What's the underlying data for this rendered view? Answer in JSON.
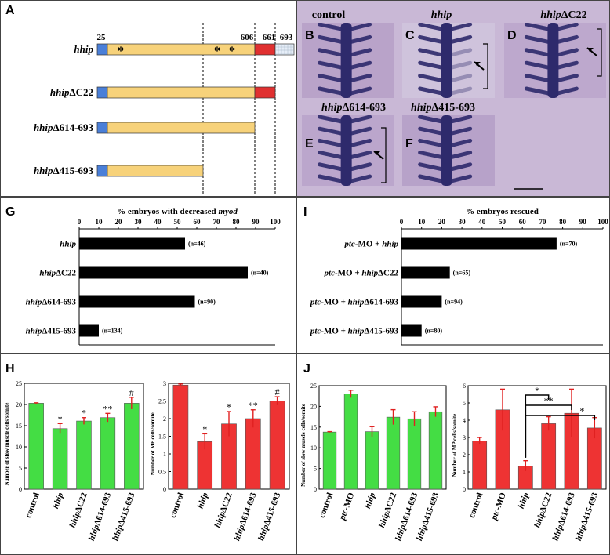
{
  "panels": {
    "a": {
      "label": "A"
    },
    "b": {
      "label": "B"
    },
    "c": {
      "label": "C"
    },
    "d": {
      "label": "D"
    },
    "e": {
      "label": "E"
    },
    "f": {
      "label": "F"
    },
    "g": {
      "label": "G"
    },
    "h": {
      "label": "H"
    },
    "i": {
      "label": "I"
    },
    "j": {
      "label": "J"
    }
  },
  "panel_a": {
    "constructs": [
      {
        "name": "hhip",
        "suffix": "",
        "segments": [
          "blue",
          "yellow",
          "red",
          "grid"
        ],
        "end": 693
      },
      {
        "name": "hhip",
        "suffix": "ΔC22",
        "segments": [
          "blue",
          "yellow",
          "red"
        ],
        "end": 661
      },
      {
        "name": "hhip",
        "suffix": "Δ614-693",
        "segments": [
          "blue",
          "yellow"
        ],
        "end": 606
      },
      {
        "name": "hhip",
        "suffix": "Δ415-693",
        "segments": [
          "blue",
          "yellow"
        ],
        "end": 415
      }
    ],
    "positions": [
      "25",
      "606",
      "661",
      "693"
    ],
    "asterisk": "*",
    "colors": {
      "blue": "#4a7fd8",
      "yellow": "#f7d27a",
      "red": "#e03030",
      "grid": "#e6eef8"
    }
  },
  "micro": [
    {
      "label": "control",
      "name": "",
      "suffix": ""
    },
    {
      "label": "",
      "name": "hhip",
      "suffix": ""
    },
    {
      "label": "",
      "name": "hhip",
      "suffix": "ΔC22"
    },
    {
      "label": "",
      "name": "hhip",
      "suffix": "Δ614-693"
    },
    {
      "label": "",
      "name": "hhip",
      "suffix": "Δ415-693"
    }
  ],
  "chart_data": [
    {
      "id": "G",
      "type": "bar",
      "orientation": "horizontal",
      "title": "% embryos with decreased myod",
      "title_prefix": "% embryos with decreased ",
      "title_italic": "myod",
      "ticks": [
        "0",
        "10",
        "20",
        "30",
        "40",
        "50",
        "60",
        "70",
        "80",
        "90",
        "100"
      ],
      "xlim": [
        0,
        100
      ],
      "categories": [
        {
          "prefix": "",
          "name": "hhip",
          "suffix": ""
        },
        {
          "prefix": "",
          "name": "hhip",
          "suffix": "ΔC22"
        },
        {
          "prefix": "",
          "name": "hhip",
          "suffix": "Δ614-693"
        },
        {
          "prefix": "",
          "name": "hhip",
          "suffix": "Δ415-693"
        }
      ],
      "values": [
        54,
        86,
        59,
        10
      ],
      "data_labels": [
        "(n=46)",
        "(n=40)",
        "(n=90)",
        "(n=134)"
      ]
    },
    {
      "id": "I",
      "type": "bar",
      "orientation": "horizontal",
      "title": "% embryos rescued",
      "ticks": [
        "0",
        "10",
        "20",
        "30",
        "40",
        "50",
        "60",
        "70",
        "80",
        "90",
        "100"
      ],
      "xlim": [
        0,
        100
      ],
      "categories": [
        {
          "prefix": "ptc-MO + ",
          "name": "hhip",
          "suffix": ""
        },
        {
          "prefix": "ptc-MO + ",
          "name": "hhip",
          "suffix": "ΔC22"
        },
        {
          "prefix": "ptc-MO + ",
          "name": "hhip",
          "suffix": "Δ614-693"
        },
        {
          "prefix": "ptc-MO + ",
          "name": "hhip",
          "suffix": "Δ415-693"
        }
      ],
      "values": [
        77,
        24,
        20,
        10
      ],
      "data_labels": [
        "(n=70)",
        "(n=65)",
        "(n=94)",
        "(n=80)"
      ]
    },
    {
      "id": "H1",
      "type": "bar",
      "ylabel": "Number of slow muscle cells/somite",
      "ylim": [
        0,
        25
      ],
      "yticks": [
        "0",
        "5",
        "10",
        "15",
        "20",
        "25"
      ],
      "color": "#44dd44",
      "categories": [
        {
          "prefix": "control",
          "name": "",
          "suffix": ""
        },
        {
          "prefix": "",
          "name": "hhip",
          "suffix": ""
        },
        {
          "prefix": "",
          "name": "hhip",
          "suffix": "ΔC22"
        },
        {
          "prefix": "",
          "name": "hhip",
          "suffix": "Δ614-693"
        },
        {
          "prefix": "",
          "name": "hhip",
          "suffix": "Δ415-693"
        }
      ],
      "values": [
        20.3,
        14.3,
        16.1,
        16.9,
        20.3
      ],
      "errors": [
        0.1,
        1.2,
        0.8,
        1.0,
        1.4
      ],
      "marks": [
        "",
        "*",
        "*",
        "**",
        "#"
      ]
    },
    {
      "id": "H2",
      "type": "bar",
      "ylabel": "Number of MP cells/somite",
      "ylim": [
        0,
        3
      ],
      "yticks": [
        "0",
        "0.5",
        "1",
        "1.5",
        "2",
        "2.5",
        "3"
      ],
      "color": "#ee3333",
      "categories": [
        {
          "prefix": "control",
          "name": "",
          "suffix": ""
        },
        {
          "prefix": "",
          "name": "hhip",
          "suffix": ""
        },
        {
          "prefix": "",
          "name": "hhip",
          "suffix": "ΔC22"
        },
        {
          "prefix": "",
          "name": "hhip",
          "suffix": "Δ614-693"
        },
        {
          "prefix": "",
          "name": "hhip",
          "suffix": "Δ415-693"
        }
      ],
      "values": [
        2.95,
        1.35,
        1.85,
        2.0,
        2.5
      ],
      "errors": [
        0.03,
        0.22,
        0.35,
        0.25,
        0.12
      ],
      "marks": [
        "",
        "*",
        "*",
        "**",
        "#"
      ]
    },
    {
      "id": "J1",
      "type": "bar",
      "ylabel": "Number of slow muscle cells/somite",
      "ylim": [
        0,
        25
      ],
      "yticks": [
        "0",
        "5",
        "10",
        "15",
        "20",
        "25"
      ],
      "color": "#44dd44",
      "categories": [
        {
          "prefix": "control",
          "name": "",
          "suffix": ""
        },
        {
          "prefix": "",
          "name": "ptc",
          "suffix": "-MO"
        },
        {
          "prefix": "",
          "name": "hhip",
          "suffix": ""
        },
        {
          "prefix": "",
          "name": "hhip",
          "suffix": "ΔC22"
        },
        {
          "prefix": "",
          "name": "hhip",
          "suffix": "Δ614-693"
        },
        {
          "prefix": "",
          "name": "hhip",
          "suffix": "Δ415-693"
        }
      ],
      "values": [
        13.8,
        23.0,
        13.9,
        17.4,
        17.0,
        18.7
      ],
      "errors": [
        0.1,
        0.9,
        1.2,
        1.8,
        1.7,
        1.2
      ],
      "marks": [
        "",
        "",
        "",
        "",
        "",
        ""
      ]
    },
    {
      "id": "J2",
      "type": "bar",
      "ylabel": "Number of MP cells/somite",
      "ylim": [
        0,
        6
      ],
      "yticks": [
        "0",
        "1",
        "2",
        "3",
        "4",
        "5",
        "6"
      ],
      "color": "#ee3333",
      "categories": [
        {
          "prefix": "control",
          "name": "",
          "suffix": ""
        },
        {
          "prefix": "",
          "name": "ptc",
          "suffix": "-MO"
        },
        {
          "prefix": "",
          "name": "hhip",
          "suffix": ""
        },
        {
          "prefix": "",
          "name": "hhip",
          "suffix": "ΔC22"
        },
        {
          "prefix": "",
          "name": "hhip",
          "suffix": "Δ614-693"
        },
        {
          "prefix": "",
          "name": "hhip",
          "suffix": "Δ415-693"
        }
      ],
      "values": [
        2.8,
        4.6,
        1.35,
        3.8,
        4.4,
        3.55
      ],
      "errors": [
        0.2,
        1.2,
        0.3,
        0.4,
        1.4,
        0.6
      ],
      "marks": [
        "",
        "",
        "",
        "",
        "",
        ""
      ],
      "brackets": [
        {
          "from": 2,
          "to": 3,
          "label": "*"
        },
        {
          "from": 2,
          "to": 4,
          "label": "**"
        },
        {
          "from": 2,
          "to": 5,
          "label": "*"
        }
      ]
    }
  ]
}
